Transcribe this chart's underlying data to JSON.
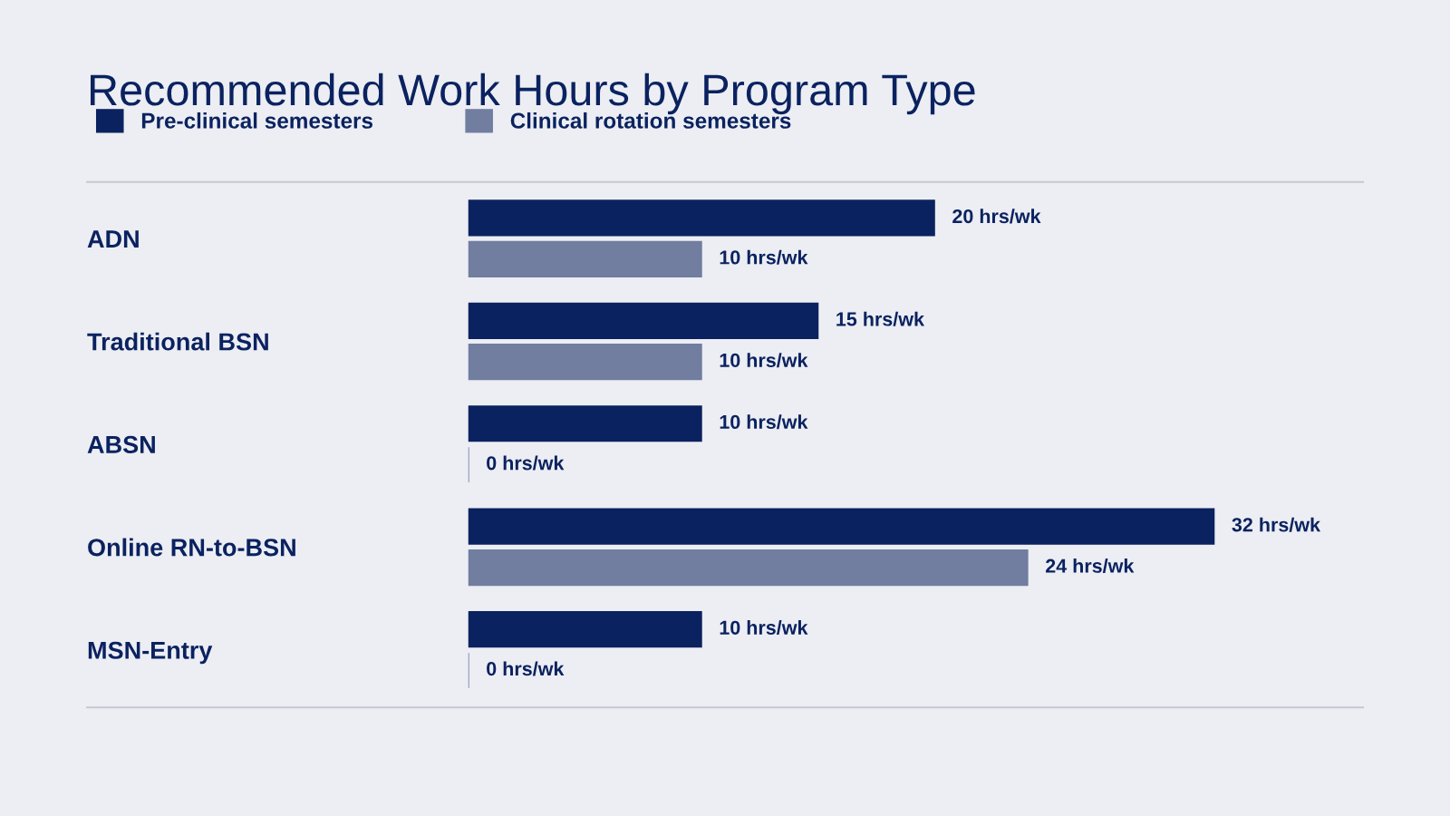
{
  "chart_data": {
    "type": "bar",
    "orientation": "horizontal",
    "title": "Recommended Work Hours by Program Type",
    "categories": [
      "ADN",
      "Traditional BSN",
      "ABSN",
      "Online RN-to-BSN",
      "MSN-Entry"
    ],
    "series": [
      {
        "name": "Pre-clinical semesters",
        "color": "#0b2260",
        "values": [
          20,
          15,
          10,
          32,
          10
        ],
        "value_labels": [
          "20 hrs/wk",
          "15 hrs/wk",
          "10 hrs/wk",
          "32 hrs/wk",
          "10 hrs/wk"
        ]
      },
      {
        "name": "Clinical rotation semesters",
        "color": "#717ea0",
        "values": [
          10,
          10,
          0,
          24,
          0
        ],
        "value_labels": [
          "10 hrs/wk",
          "10 hrs/wk",
          "0 hrs/wk",
          "24 hrs/wk",
          "0 hrs/wk"
        ]
      }
    ],
    "legend": "top left",
    "grid": false
  }
}
